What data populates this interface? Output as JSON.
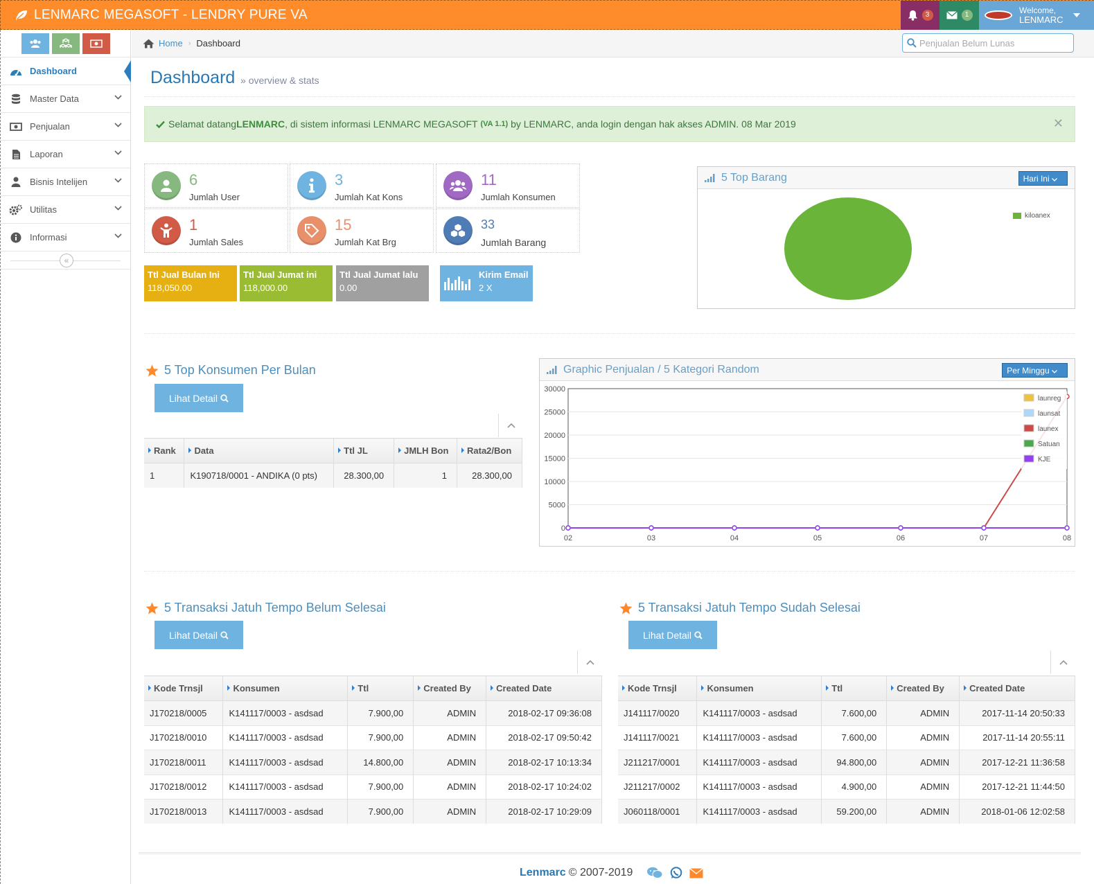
{
  "header": {
    "brand": "LENMARC MEGASOFT - LENDRY PURE VA",
    "notifications_count": "3",
    "messages_count": "1",
    "welcome": "Welcome,",
    "user": "LENMARC",
    "colors": {
      "topbar": "#ff8c2b",
      "notif": "#892e65",
      "messages": "#2e8965",
      "user": "#6aa6d6"
    }
  },
  "sidebar": {
    "items": [
      {
        "label": "Dashboard",
        "icon": "tachometer-icon"
      },
      {
        "label": "Master Data",
        "icon": "database-icon"
      },
      {
        "label": "Penjualan",
        "icon": "money-icon"
      },
      {
        "label": "Laporan",
        "icon": "file-icon"
      },
      {
        "label": "Bisnis Intelijen",
        "icon": "user-icon"
      },
      {
        "label": "Utilitas",
        "icon": "cogs-icon"
      },
      {
        "label": "Informasi",
        "icon": "info-icon"
      }
    ]
  },
  "breadcrumb": {
    "home": "Home",
    "current": "Dashboard"
  },
  "search": {
    "placeholder": "Penjualan Belum Lunas"
  },
  "page": {
    "title": "Dashboard",
    "subtitle": "overview & stats"
  },
  "alert": {
    "pre": "Selamat datang ",
    "user": "LENMARC",
    "mid": ", di sistem informasi LENMARC MEGASOFT ",
    "version": "(VA 1.1)",
    "post": " by LENMARC, anda login dengan hak akses ADMIN. 08 Mar 2019"
  },
  "stats": [
    {
      "value": "6",
      "label": "Jumlah User",
      "color": "#87b87f"
    },
    {
      "value": "3",
      "label": "Jumlah Kat Kons",
      "color": "#6fb3e0"
    },
    {
      "value": "11",
      "label": "Jumlah Konsumen",
      "color": "#a069c3"
    },
    {
      "value": "1",
      "label": "Jumlah Sales",
      "color": "#d15b47"
    },
    {
      "value": "15",
      "label": "Jumlah Kat Brg",
      "color": "#e8906a"
    },
    {
      "value": "33",
      "label": "Jumlah Barang",
      "color": "#4f7cb4"
    }
  ],
  "tiles": [
    {
      "title": "Ttl Jual Bulan Ini",
      "value": "118,050.00",
      "color": "#e6b012"
    },
    {
      "title": "Ttl Jual Jumat ini",
      "value": "118,000.00",
      "color": "#9abc32"
    },
    {
      "title": "Ttl Jual Jumat lalu",
      "value": "0.00",
      "color": "#a0a0a0"
    },
    {
      "title": "Kirim Email",
      "value": "2 X",
      "color": "#6fb3e0"
    }
  ],
  "top_barang": {
    "title": "5 Top Barang",
    "dropdown": "Hari Ini",
    "legend": "kiloanex"
  },
  "top_konsumen": {
    "title": "5 Top Konsumen Per Bulan",
    "button": "Lihat Detail",
    "columns": [
      "Rank",
      "Data",
      "Ttl JL",
      "JMLH Bon",
      "Rata2/Bon"
    ],
    "rows": [
      [
        "1",
        "K190718/0001 - ANDIKA (0 pts)",
        "28.300,00",
        "1",
        "28.300,00"
      ]
    ]
  },
  "graphic": {
    "title": "Graphic Penjualan / 5 Kategori Random",
    "dropdown": "Per Minggu"
  },
  "chart_data": {
    "type": "line",
    "x": [
      "02",
      "03",
      "04",
      "05",
      "06",
      "07",
      "08"
    ],
    "ylim": [
      0,
      30000
    ],
    "yticks": [
      "30000",
      "25000",
      "20000",
      "15000",
      "10000",
      "5000",
      "0"
    ],
    "grid": true,
    "legend_position": "top-right",
    "series": [
      {
        "name": "launreg",
        "color": "#edc240",
        "values": [
          0,
          0,
          0,
          0,
          0,
          0,
          0
        ]
      },
      {
        "name": "launsat",
        "color": "#afd8f8",
        "values": [
          0,
          0,
          0,
          0,
          0,
          0,
          0
        ]
      },
      {
        "name": "launex",
        "color": "#cb4b4b",
        "values": [
          0,
          0,
          0,
          0,
          0,
          0,
          28300
        ]
      },
      {
        "name": "Satuan",
        "color": "#4da74d",
        "values": [
          0,
          0,
          0,
          0,
          0,
          0,
          0
        ]
      },
      {
        "name": "KJE",
        "color": "#9440ed",
        "values": [
          0,
          0,
          0,
          0,
          0,
          0,
          0
        ]
      }
    ]
  },
  "belum": {
    "title": "5 Transaksi Jatuh Tempo Belum Selesai",
    "button": "Lihat Detail",
    "columns": [
      "Kode Trnsjl",
      "Konsumen",
      "Ttl",
      "Created By",
      "Created Date"
    ],
    "rows": [
      [
        "J170218/0005",
        "K141117/0003 - asdsad",
        "7.900,00",
        "ADMIN",
        "2018-02-17 09:36:08"
      ],
      [
        "J170218/0010",
        "K141117/0003 - asdsad",
        "7.900,00",
        "ADMIN",
        "2018-02-17 09:50:42"
      ],
      [
        "J170218/0011",
        "K141117/0003 - asdsad",
        "14.800,00",
        "ADMIN",
        "2018-02-17 10:13:34"
      ],
      [
        "J170218/0012",
        "K141117/0003 - asdsad",
        "7.900,00",
        "ADMIN",
        "2018-02-17 10:24:02"
      ],
      [
        "J170218/0013",
        "K141117/0003 - asdsad",
        "7.900,00",
        "ADMIN",
        "2018-02-17 10:29:09"
      ]
    ]
  },
  "sudah": {
    "title": "5 Transaksi Jatuh Tempo Sudah Selesai",
    "button": "Lihat Detail",
    "columns": [
      "Kode Trnsjl",
      "Konsumen",
      "Ttl",
      "Created By",
      "Created Date"
    ],
    "rows": [
      [
        "J141117/0020",
        "K141117/0003 - asdsad",
        "7.600,00",
        "ADMIN",
        "2017-11-14 20:50:33"
      ],
      [
        "J141117/0021",
        "K141117/0003 - asdsad",
        "7.600,00",
        "ADMIN",
        "2017-11-14 20:55:11"
      ],
      [
        "J211217/0001",
        "K141117/0003 - asdsad",
        "94.800,00",
        "ADMIN",
        "2017-12-21 11:36:58"
      ],
      [
        "J211217/0002",
        "K141117/0003 - asdsad",
        "4.900,00",
        "ADMIN",
        "2017-12-21 11:44:50"
      ],
      [
        "J060118/0001",
        "K141117/0003 - asdsad",
        "59.200,00",
        "ADMIN",
        "2018-01-06 12:02:58"
      ]
    ]
  },
  "footer": {
    "brand": "Lenmarc",
    "copyright": "© 2007-2019"
  }
}
